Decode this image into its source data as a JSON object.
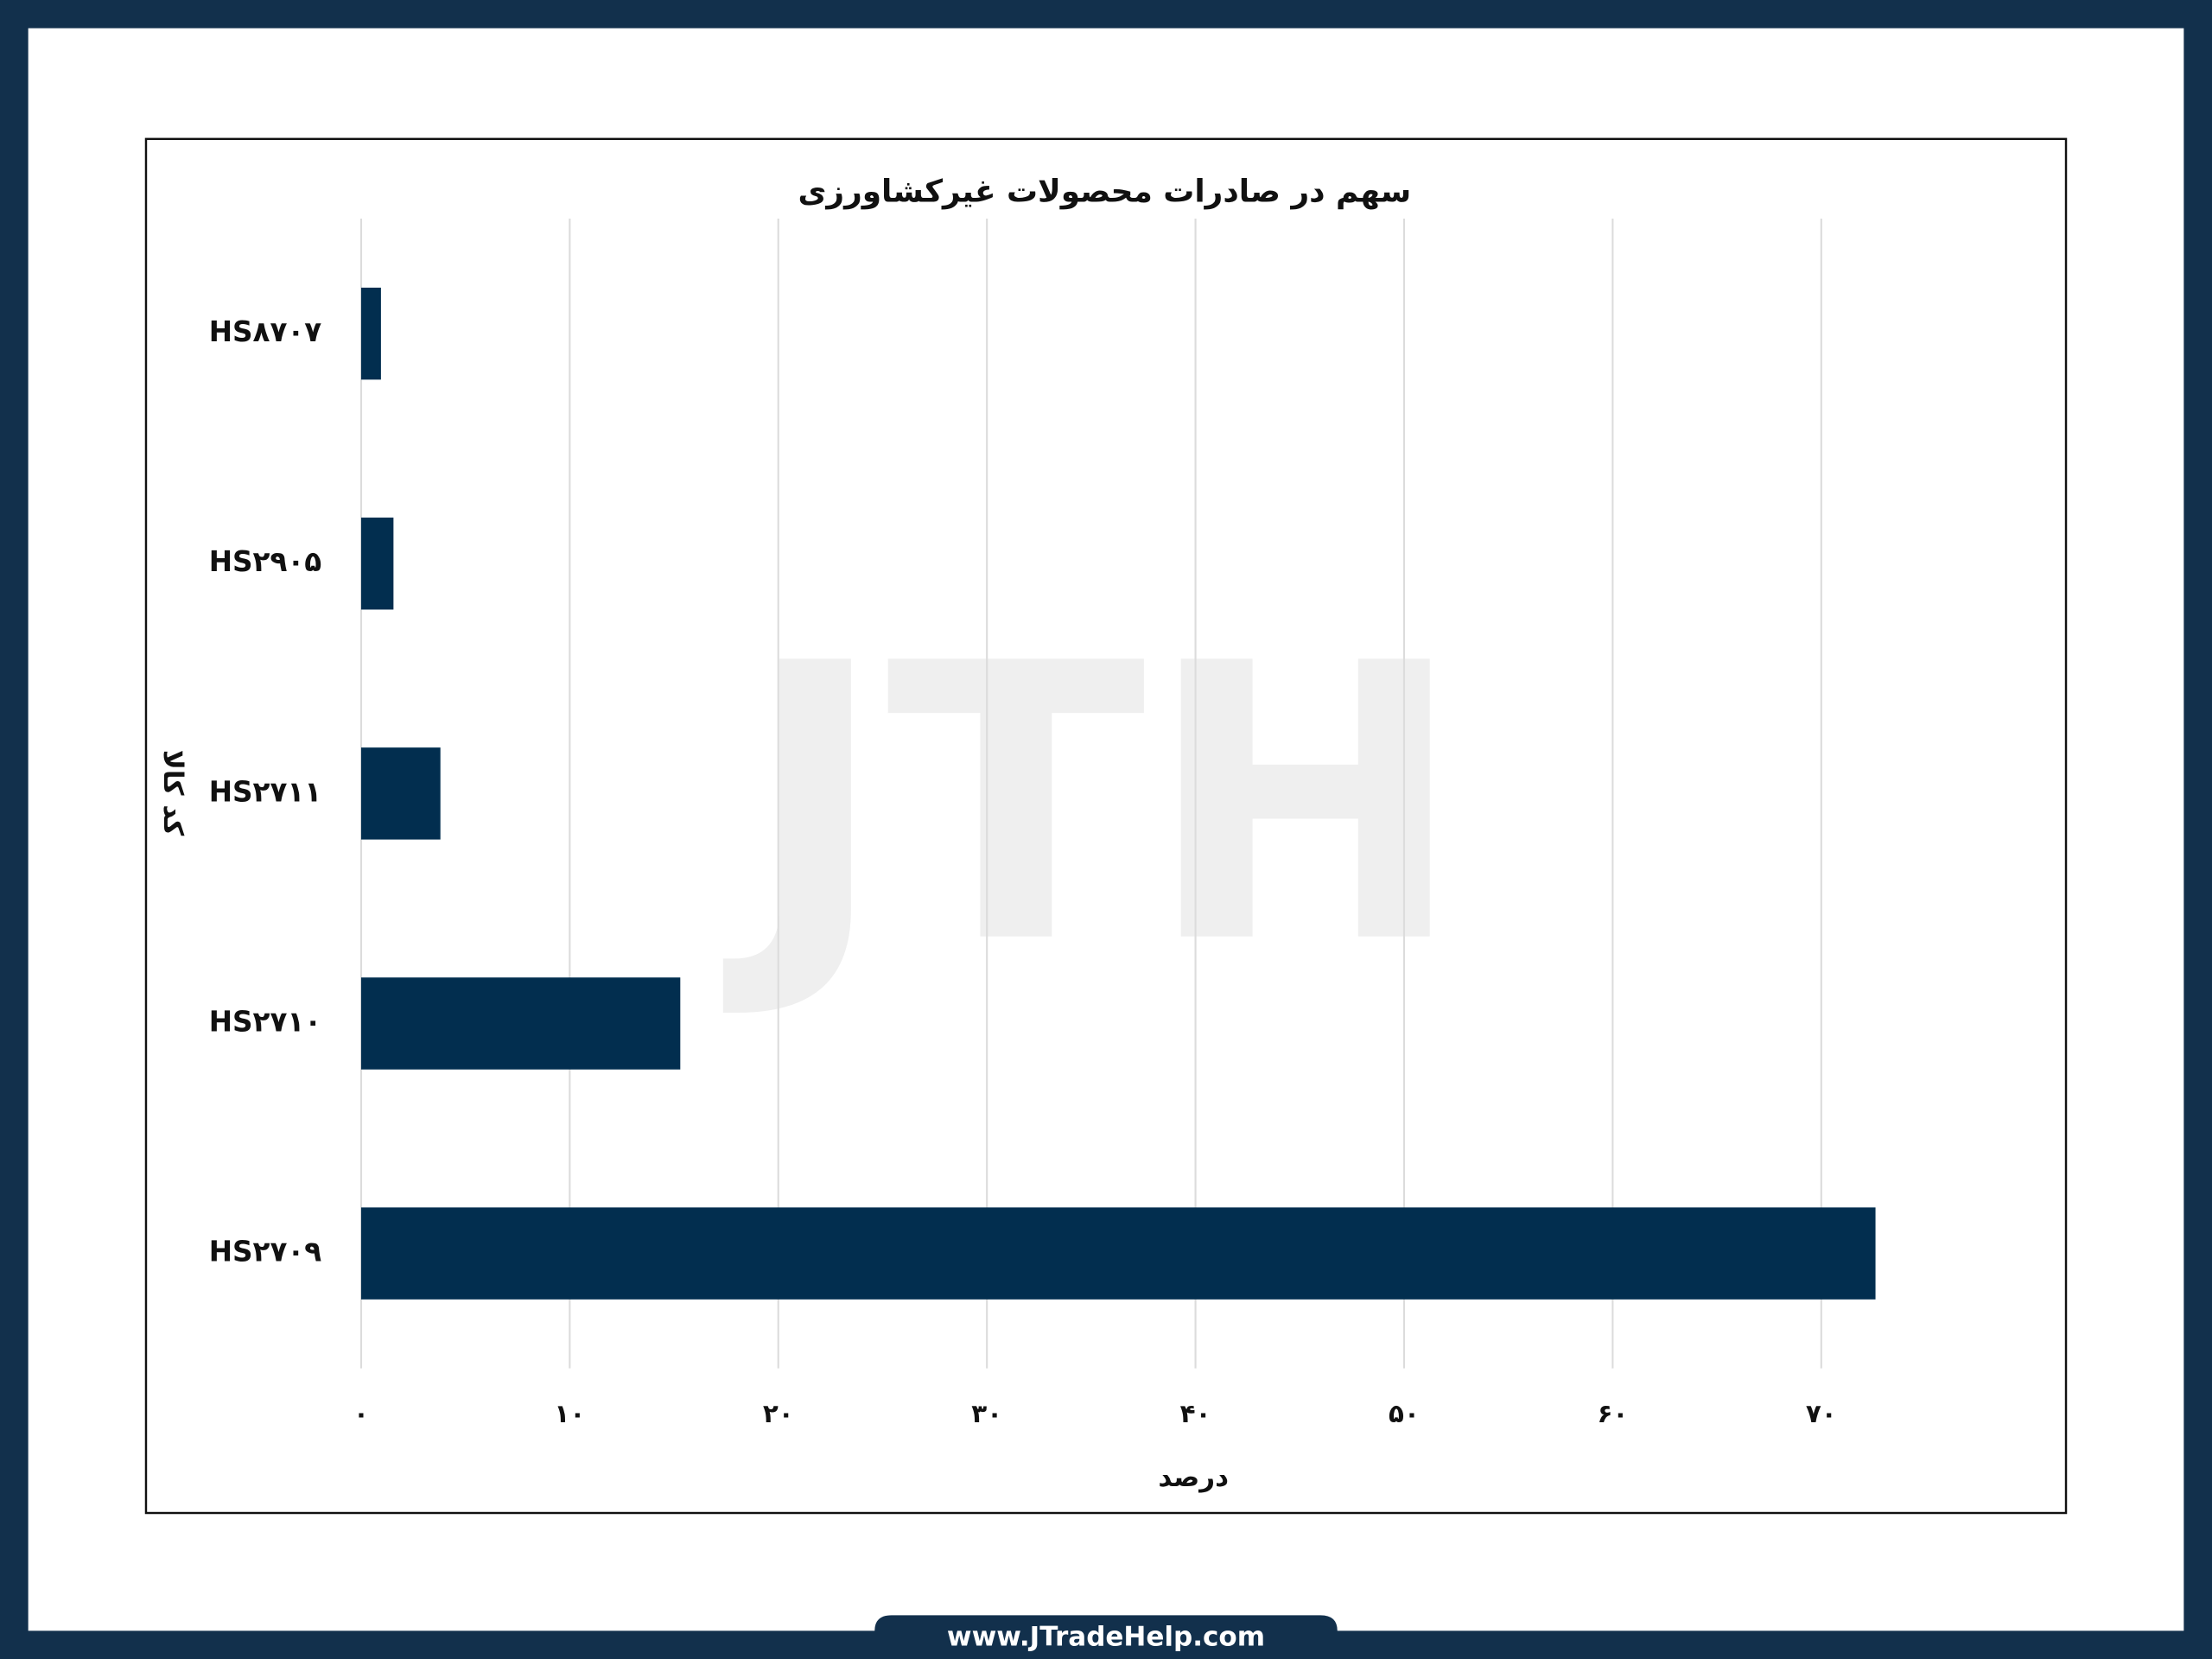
{
  "chart_data": {
    "type": "bar",
    "orientation": "horizontal",
    "title": "سهم در صادرات محصولات غیرکشاورزی",
    "x_label": "درصد",
    "y_label": "کد کالا",
    "watermark": "JTH",
    "categories": [
      "HS۸۷۰۷",
      "HS۲۹۰۵",
      "HS۲۷۱۱",
      "HS۲۷۱۰",
      "HS۲۷۰۹"
    ],
    "values": [
      0.95,
      1.55,
      3.8,
      15.3,
      72.6
    ],
    "color": "#022e4f",
    "xlim": [
      0,
      75
    ],
    "xticks": [
      {
        "value": 0,
        "label": "۰"
      },
      {
        "value": 10,
        "label": "۱۰"
      },
      {
        "value": 20,
        "label": "۲۰"
      },
      {
        "value": 30,
        "label": "۳۰"
      },
      {
        "value": 40,
        "label": "۴۰"
      },
      {
        "value": 50,
        "label": "۵۰"
      },
      {
        "value": 60,
        "label": "۶۰"
      },
      {
        "value": 70,
        "label": "۷۰"
      }
    ],
    "grid": true
  },
  "footer": "www.JTradeHelp.com"
}
